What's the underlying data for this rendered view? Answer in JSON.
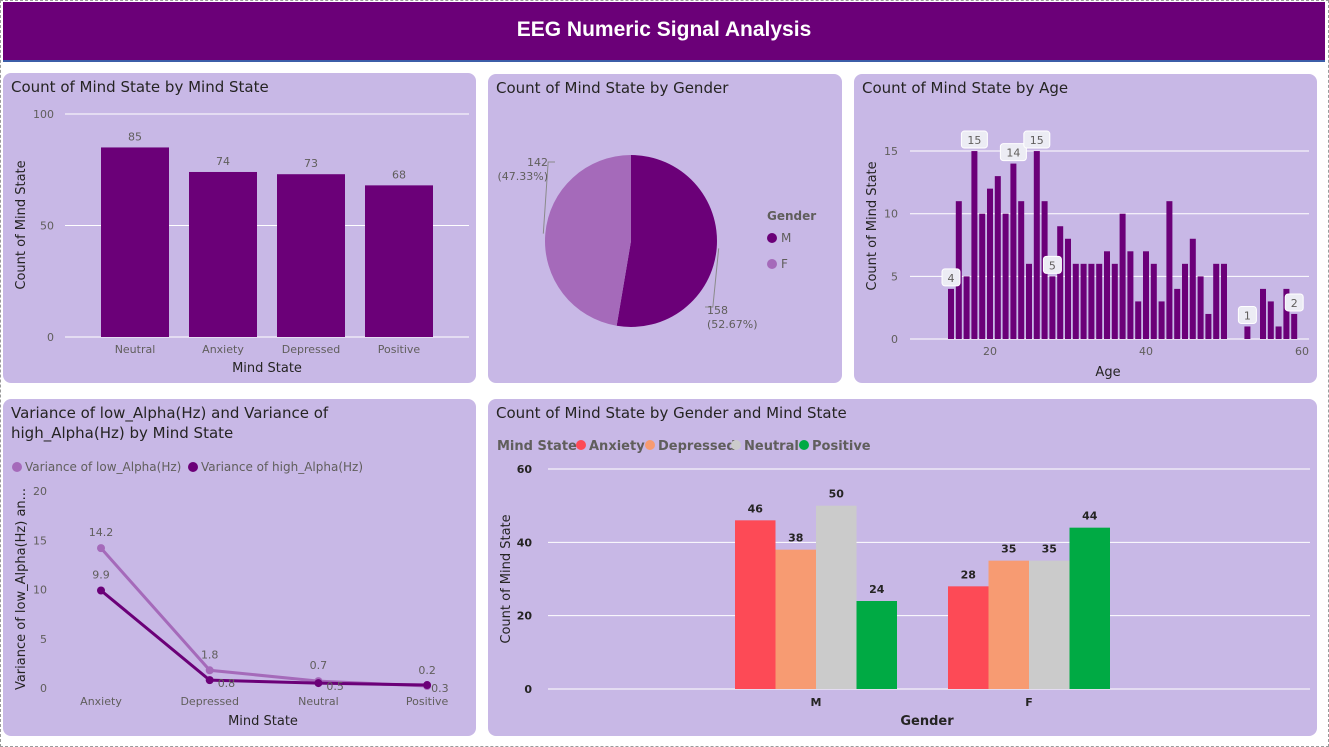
{
  "header": {
    "title": "EEG Numeric Signal Analysis"
  },
  "colors": {
    "primary": "#6b0078",
    "light": "#a56aba",
    "anxiety": "#fd4a56",
    "depressed": "#f79b72",
    "neutral": "#cbcbcb",
    "positive": "#00aa44",
    "panel": "#c8b8e6"
  },
  "panel1": {
    "title": "Count of Mind State by Mind State"
  },
  "panel2": {
    "title": "Count of Mind State by Gender"
  },
  "panel3": {
    "title": "Count of Mind State by Age"
  },
  "panel4": {
    "title_line1": "Variance of low_Alpha(Hz) and Variance of",
    "title_line2": "high_Alpha(Hz) by Mind State"
  },
  "panel5": {
    "title": "Count of Mind State by Gender and Mind State"
  },
  "chart_data": [
    {
      "type": "bar",
      "title": "Count of Mind State by Mind State",
      "categories": [
        "Neutral",
        "Anxiety",
        "Depressed",
        "Positive"
      ],
      "values": [
        85,
        74,
        73,
        68
      ],
      "xlabel": "Mind State",
      "ylabel": "Count of Mind State",
      "ylim": [
        0,
        100
      ],
      "yticks": [
        0,
        50,
        100
      ]
    },
    {
      "type": "pie",
      "title": "Count of Mind State by Gender",
      "legend_title": "Gender",
      "slices": [
        {
          "label": "M",
          "value": 158,
          "text": "158",
          "pct": "(52.67%)"
        },
        {
          "label": "F",
          "value": 142,
          "text": "142",
          "pct": "(47.33%)"
        }
      ]
    },
    {
      "type": "bar",
      "title": "Count of Mind State by Age",
      "xlabel": "Age",
      "ylabel": "Count of Mind State",
      "x": [
        15,
        16,
        17,
        18,
        19,
        20,
        21,
        22,
        23,
        24,
        25,
        26,
        27,
        28,
        29,
        30,
        31,
        32,
        33,
        34,
        35,
        36,
        37,
        38,
        39,
        40,
        41,
        42,
        43,
        44,
        45,
        46,
        47,
        48,
        49,
        50,
        51,
        52,
        53,
        54,
        55,
        56,
        57,
        58,
        59
      ],
      "values": [
        4,
        11,
        5,
        15,
        10,
        12,
        13,
        10,
        14,
        11,
        6,
        15,
        11,
        5,
        9,
        8,
        6,
        6,
        6,
        6,
        7,
        6,
        10,
        7,
        3,
        7,
        6,
        3,
        11,
        4,
        6,
        8,
        5,
        2,
        6,
        6,
        0,
        0,
        1,
        0,
        4,
        3,
        1,
        4,
        2
      ],
      "labeled": [
        {
          "x": 15,
          "text": "4"
        },
        {
          "x": 18,
          "text": "15"
        },
        {
          "x": 23,
          "text": "14"
        },
        {
          "x": 26,
          "text": "15"
        },
        {
          "x": 28,
          "text": "5"
        },
        {
          "x": 53,
          "text": "1"
        },
        {
          "x": 59,
          "text": "2"
        }
      ],
      "xlim": [
        12.5,
        60
      ],
      "xticks": [
        20,
        40,
        60
      ],
      "ylim": [
        0,
        17
      ],
      "yticks": [
        0,
        5,
        10,
        15
      ]
    },
    {
      "type": "line",
      "title": "Variance of low_Alpha(Hz) and Variance of high_Alpha(Hz) by Mind State",
      "categories": [
        "Anxiety",
        "Depressed",
        "Neutral",
        "Positive"
      ],
      "series": [
        {
          "name": "Variance of low_Alpha(Hz)",
          "values": [
            14.2,
            1.8,
            0.7,
            0.2
          ],
          "labels": [
            "14.2",
            "1.8",
            "0.7",
            "0.2"
          ]
        },
        {
          "name": "Variance of high_Alpha(Hz)",
          "values": [
            9.9,
            0.8,
            0.5,
            0.3
          ],
          "labels": [
            "9.9",
            "0.8",
            "0.5",
            "0.3"
          ]
        }
      ],
      "xlabel": "Mind State",
      "ylabel": "Variance of low_Alpha(Hz) an...",
      "ylim": [
        0,
        20
      ],
      "yticks": [
        0,
        5,
        10,
        15,
        20
      ]
    },
    {
      "type": "bar",
      "title": "Count of Mind State by Gender and Mind State",
      "legend_title": "Mind State",
      "categories": [
        "M",
        "F"
      ],
      "series": [
        {
          "name": "Anxiety",
          "values": [
            46,
            28
          ]
        },
        {
          "name": "Depressed",
          "values": [
            38,
            35
          ]
        },
        {
          "name": "Neutral",
          "values": [
            50,
            35
          ]
        },
        {
          "name": "Positive",
          "values": [
            24,
            44
          ]
        }
      ],
      "xlabel": "Gender",
      "ylabel": "Count of Mind State",
      "ylim": [
        0,
        60
      ],
      "yticks": [
        0,
        20,
        40,
        60
      ]
    }
  ]
}
